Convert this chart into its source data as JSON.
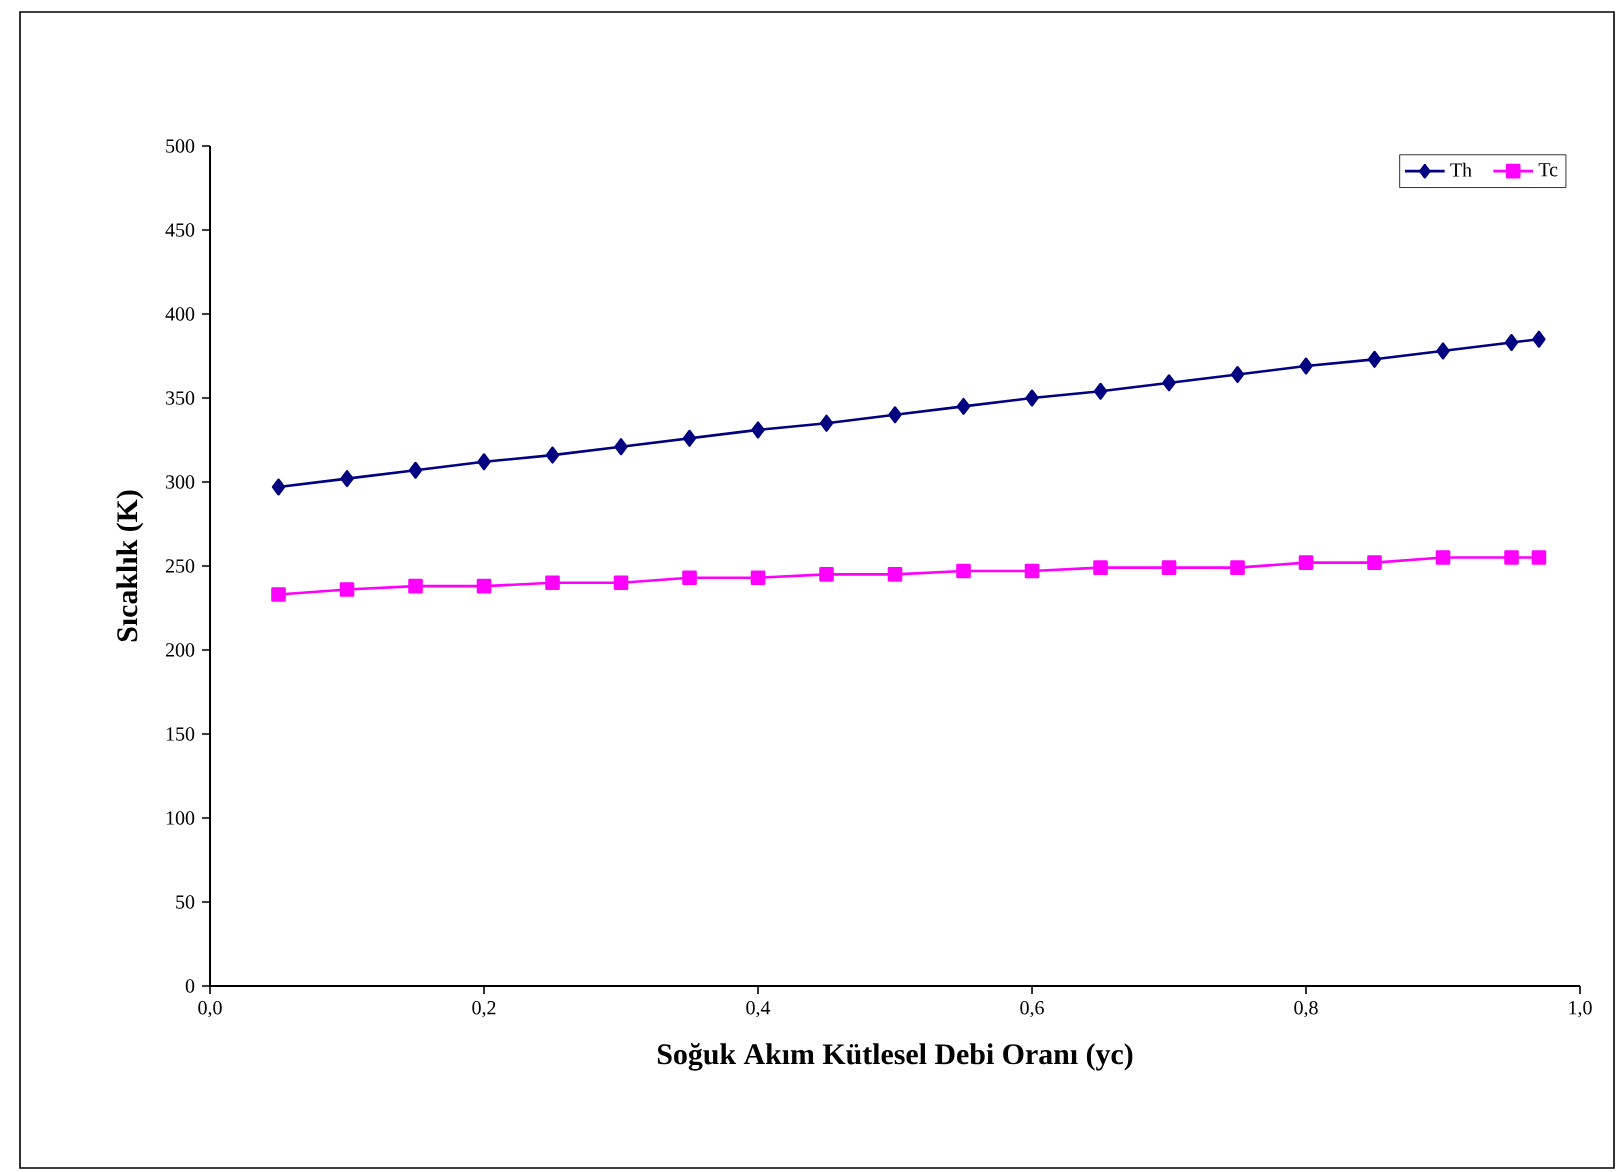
{
  "chart_data": {
    "type": "line",
    "xlabel": "Soğuk Akım Kütlesel Debi Oranı (yc)",
    "ylabel": "Sıcaklık (K)",
    "x": [
      0.05,
      0.1,
      0.15,
      0.2,
      0.25,
      0.3,
      0.35,
      0.4,
      0.45,
      0.5,
      0.55,
      0.6,
      0.65,
      0.7,
      0.75,
      0.8,
      0.85,
      0.9,
      0.95,
      0.97
    ],
    "series": [
      {
        "name": "Th",
        "color": "#000080",
        "marker": "diamond",
        "values": [
          297,
          302,
          307,
          312,
          316,
          321,
          326,
          331,
          335,
          340,
          345,
          350,
          354,
          359,
          364,
          369,
          373,
          378,
          383,
          385
        ]
      },
      {
        "name": "Tc",
        "color": "#ff00ff",
        "marker": "square",
        "values": [
          233,
          236,
          238,
          238,
          240,
          240,
          243,
          243,
          245,
          245,
          247,
          247,
          249,
          249,
          249,
          252,
          252,
          255,
          255,
          255
        ]
      }
    ],
    "xlim": [
      0,
      1
    ],
    "xticks": [
      {
        "value": 0,
        "label": "0,0"
      },
      {
        "value": 0.2,
        "label": "0,2"
      },
      {
        "value": 0.4,
        "label": "0,4"
      },
      {
        "value": 0.6,
        "label": "0,6"
      },
      {
        "value": 0.8,
        "label": "0,8"
      },
      {
        "value": 1,
        "label": "1,0"
      }
    ],
    "ylim": [
      0,
      500
    ],
    "yticks": [
      0,
      50,
      100,
      150,
      200,
      250,
      300,
      350,
      400,
      450,
      500
    ],
    "legend": "top right",
    "grid": false
  }
}
